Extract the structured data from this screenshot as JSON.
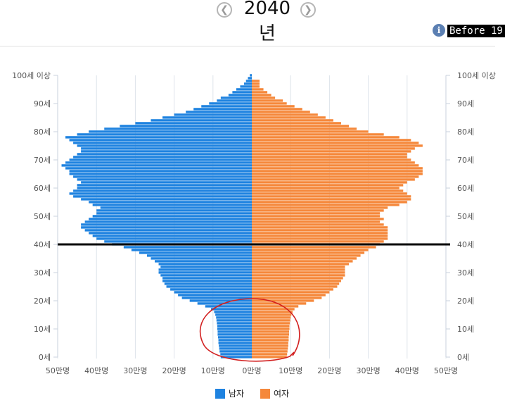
{
  "header": {
    "year": "2040년",
    "prev_icon": "chevron-left-icon",
    "next_icon": "chevron-right-icon",
    "info_icon": "info-icon",
    "before_text": "Before 19"
  },
  "colors": {
    "male": "#1f83e0",
    "female": "#f5883b",
    "reference_line": "#000000",
    "annotation": "#d22020"
  },
  "chart_data": {
    "type": "bar",
    "orientation": "horizontal-population-pyramid",
    "x_ticks": [
      "50만명",
      "40만명",
      "30만명",
      "20만명",
      "10만명",
      "0만명",
      "10만명",
      "20만명",
      "30만명",
      "40만명",
      "50만명"
    ],
    "y_ticks": [
      "0세",
      "10세",
      "20세",
      "30세",
      "40세",
      "50세",
      "60세",
      "70세",
      "80세",
      "90세",
      "100세 이상"
    ],
    "xlim": [
      -50,
      50
    ],
    "ylim": [
      0,
      100
    ],
    "age_step": 1,
    "reference_line_age": 40,
    "series": [
      {
        "name": "남자",
        "values": [
          8.0,
          8.1,
          8.3,
          8.4,
          8.5,
          8.6,
          8.6,
          8.7,
          8.8,
          8.8,
          8.9,
          8.9,
          9.0,
          9.1,
          9.2,
          9.4,
          9.7,
          10.5,
          12,
          14,
          16,
          18,
          19,
          20,
          21,
          22,
          22.5,
          23,
          23,
          23.5,
          24,
          24,
          23.5,
          24,
          25,
          26,
          27,
          29,
          31,
          33,
          36,
          38,
          40,
          41,
          42,
          43,
          44,
          44,
          43,
          42,
          41,
          40,
          40,
          39,
          41,
          42,
          44,
          46,
          47,
          46,
          45,
          45,
          44,
          45,
          46,
          47,
          47,
          48,
          49,
          48,
          47,
          46,
          45,
          44,
          44,
          45,
          46,
          47,
          48,
          45,
          42,
          38,
          34,
          30,
          26,
          23,
          20,
          17,
          15,
          13,
          11,
          9,
          8,
          6,
          5,
          4,
          3,
          2,
          1.5,
          1,
          0.5
        ]
      },
      {
        "name": "여자",
        "values": [
          9.0,
          9.1,
          9.2,
          9.3,
          9.4,
          9.4,
          9.5,
          9.5,
          9.6,
          9.6,
          9.7,
          9.7,
          9.8,
          9.9,
          10,
          10.2,
          10.5,
          11,
          12,
          14,
          16,
          18,
          19,
          20,
          21,
          22,
          22.5,
          23,
          23.5,
          24,
          24,
          24,
          24,
          25,
          26,
          27,
          28,
          29,
          30,
          32,
          33,
          34,
          35,
          35,
          35,
          35,
          35,
          34,
          33,
          34,
          33,
          33,
          34,
          35,
          38,
          40,
          41,
          41,
          40,
          39,
          38,
          39,
          40,
          42,
          43,
          44,
          44,
          44,
          43,
          42,
          41,
          40,
          40,
          41,
          42,
          44,
          43,
          41,
          38,
          34,
          30,
          27,
          25,
          23,
          21,
          19,
          17,
          15,
          13,
          11,
          9,
          8,
          6,
          5,
          4,
          3,
          2,
          2,
          2
        ]
      }
    ]
  },
  "annotations": {
    "circle_region": "0세–18세"
  }
}
